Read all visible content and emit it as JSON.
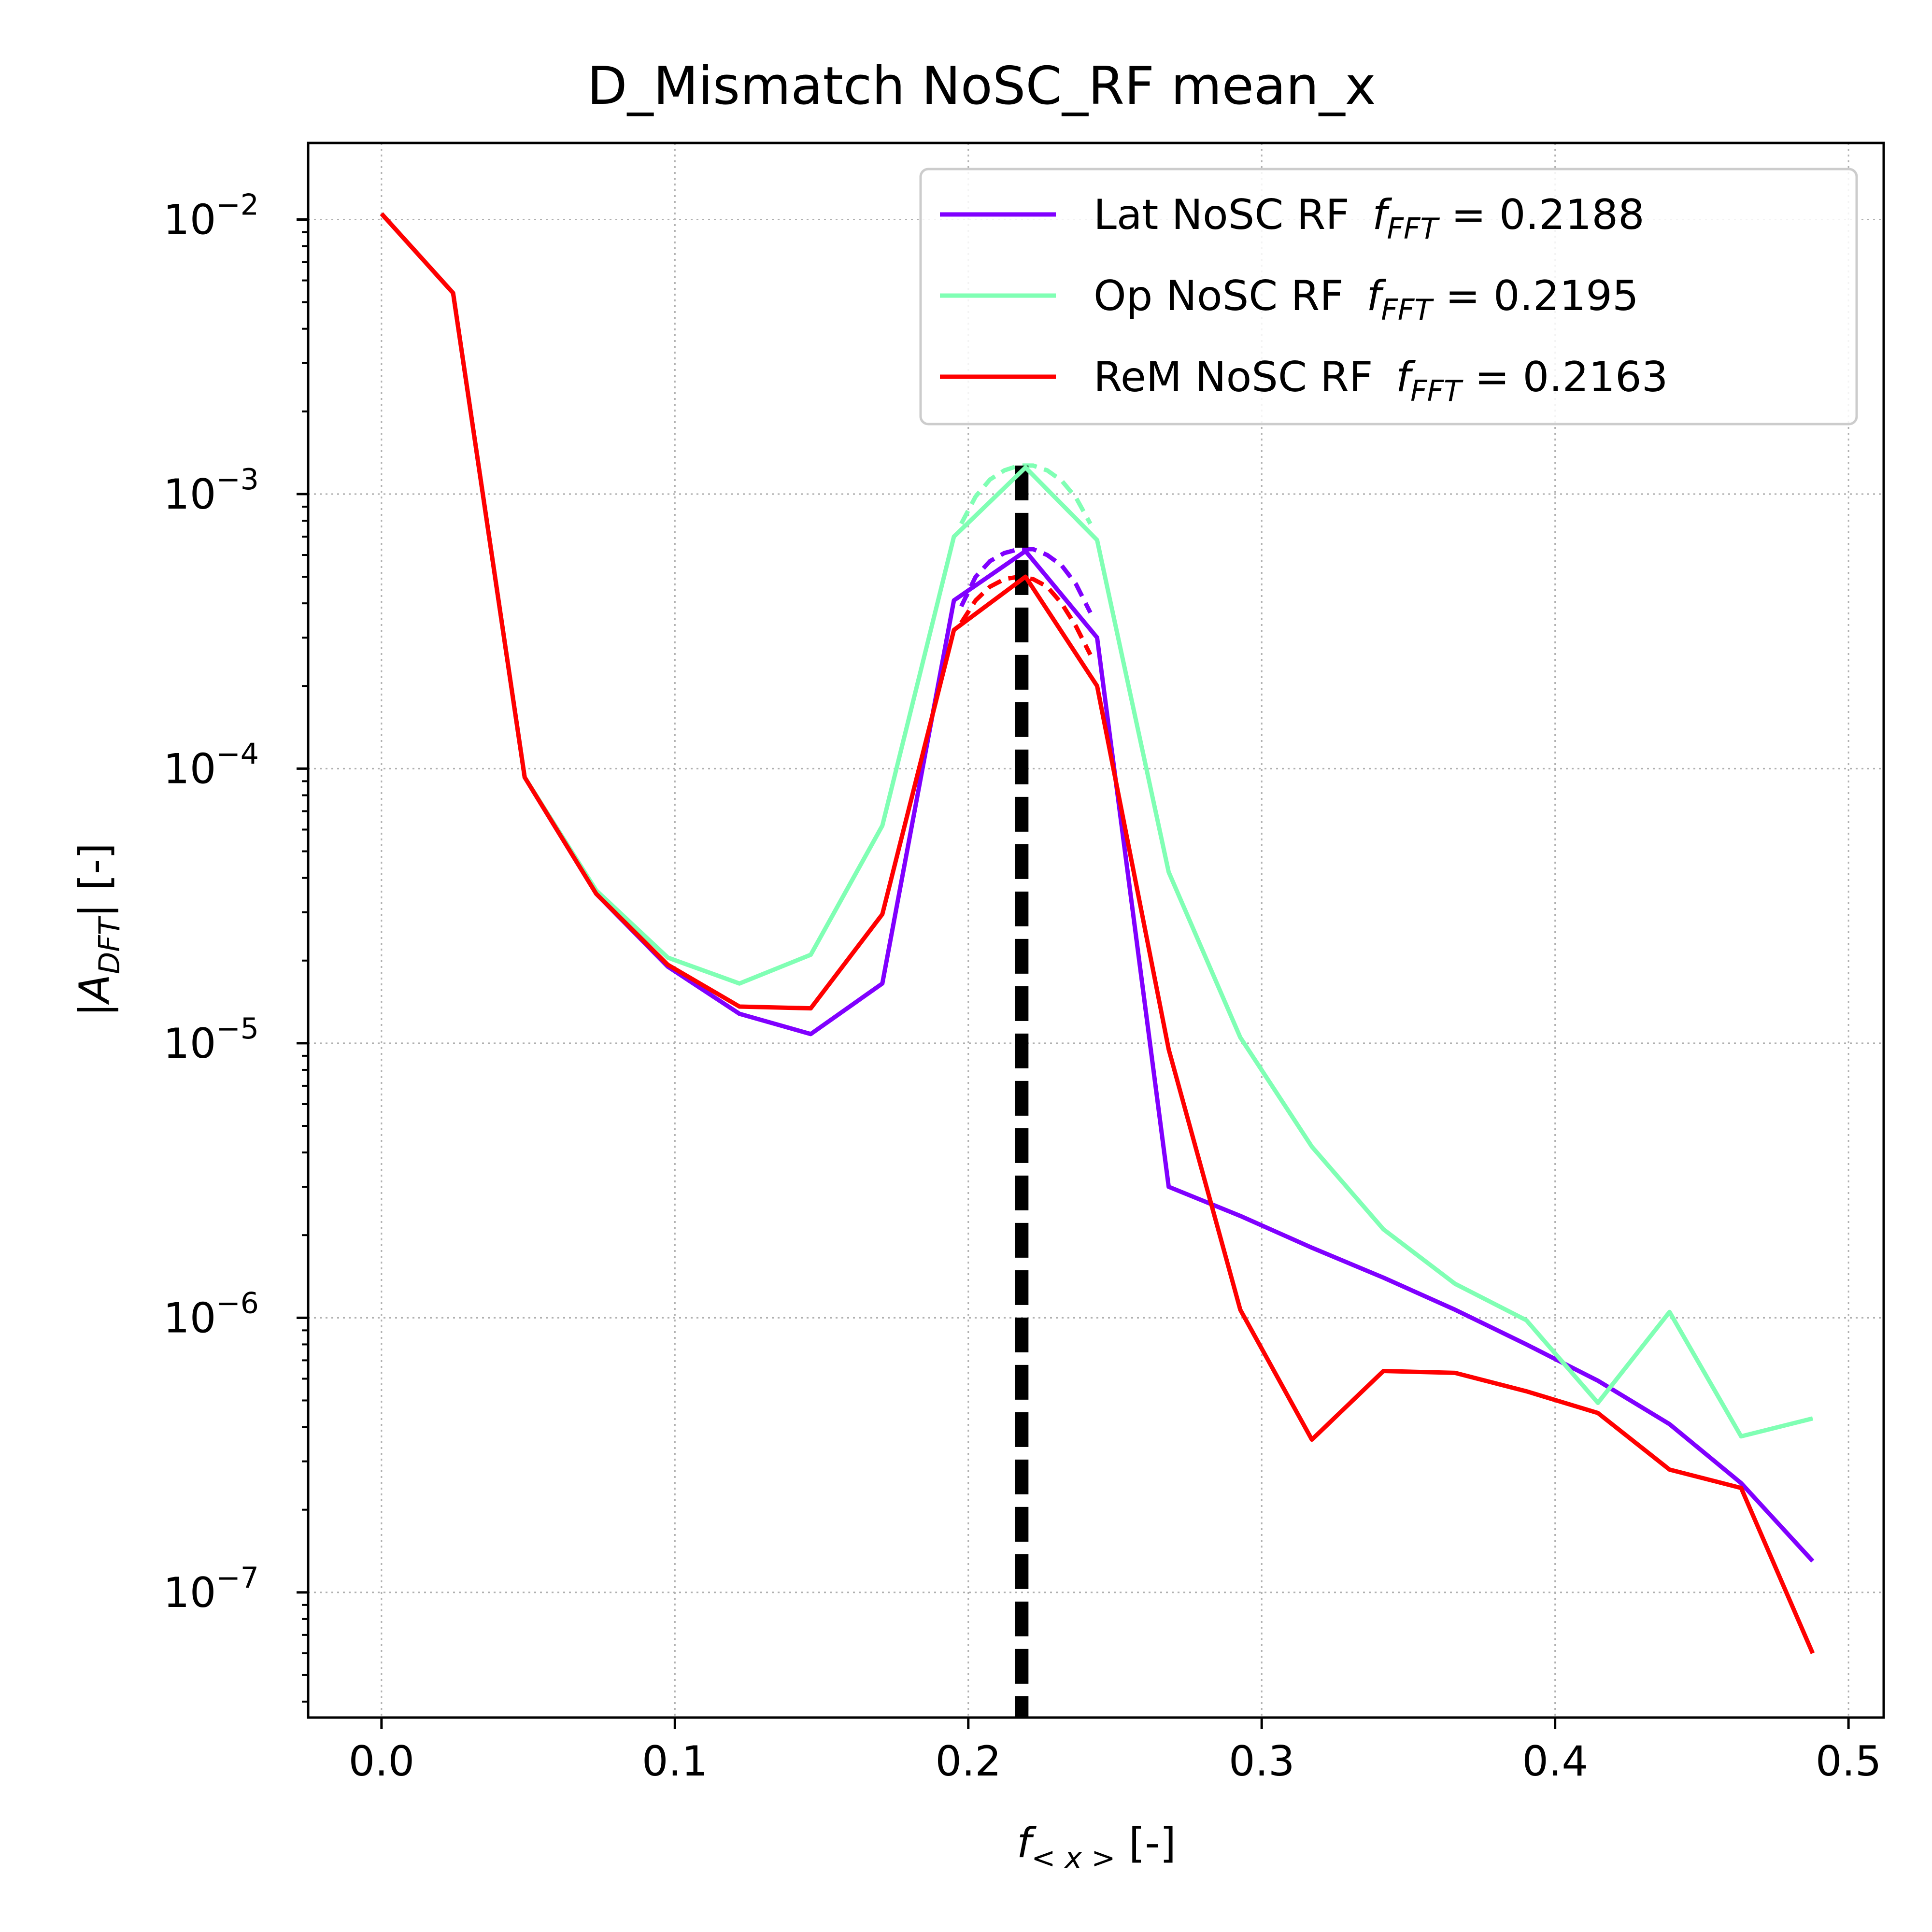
{
  "chart_data": {
    "type": "line",
    "title": "D_Mismatch NoSC_RF mean_x",
    "xlabel": "f_<x> [-]",
    "ylabel": "|A_DFT| [-]",
    "xlim": [
      -0.025,
      0.512
    ],
    "ylim": [
      3.5e-08,
      0.019
    ],
    "yscale": "log",
    "grid": true,
    "legend_position": "top-right",
    "x_ticks": [
      {
        "value": 0.0,
        "label": "0.0"
      },
      {
        "value": 0.1,
        "label": "0.1"
      },
      {
        "value": 0.2,
        "label": "0.2"
      },
      {
        "value": 0.3,
        "label": "0.3"
      },
      {
        "value": 0.4,
        "label": "0.4"
      },
      {
        "value": 0.5,
        "label": "0.5"
      }
    ],
    "y_ticks": [
      {
        "value": 1e-07,
        "mantissa": "10",
        "exponent": "−7"
      },
      {
        "value": 1e-06,
        "mantissa": "10",
        "exponent": "−6"
      },
      {
        "value": 1e-05,
        "mantissa": "10",
        "exponent": "−5"
      },
      {
        "value": 0.0001,
        "mantissa": "10",
        "exponent": "−4"
      },
      {
        "value": 0.001,
        "mantissa": "10",
        "exponent": "−3"
      },
      {
        "value": 0.01,
        "mantissa": "10",
        "exponent": "−2"
      }
    ],
    "x": [
      0.0,
      0.0244,
      0.0488,
      0.0732,
      0.0976,
      0.122,
      0.1463,
      0.1707,
      0.1951,
      0.2195,
      0.2439,
      0.2683,
      0.2927,
      0.3171,
      0.3415,
      0.3659,
      0.3902,
      0.4146,
      0.439,
      0.4634,
      0.4878
    ],
    "series": [
      {
        "name": "Lat NoSC RF",
        "legend_label": "Lat NoSC RF f_FFT =  0.2188",
        "f_fft": "0.2188",
        "color": "#8000ff",
        "values": [
          0.0105,
          0.0054,
          9.3e-05,
          3.5e-05,
          1.9e-05,
          1.28e-05,
          1.08e-05,
          1.65e-05,
          0.00041,
          0.00062,
          0.0003,
          3e-06,
          2.35e-06,
          1.8e-06,
          1.4e-06,
          1.07e-06,
          8e-07,
          5.9e-07,
          4.1e-07,
          2.5e-07,
          1.3e-07
        ]
      },
      {
        "name": "Op NoSC RF",
        "legend_label": "Op NoSC RF f_FFT =  0.2195",
        "f_fft": "0.2195",
        "color": "#80ffb4",
        "values": [
          0.0105,
          0.0054,
          9.3e-05,
          3.6e-05,
          2.05e-05,
          1.65e-05,
          2.1e-05,
          6.2e-05,
          0.0007,
          0.00125,
          0.00068,
          4.2e-05,
          1.05e-05,
          4.2e-06,
          2.1e-06,
          1.33e-06,
          9.8e-07,
          4.9e-07,
          1.05e-06,
          3.7e-07,
          4.3e-07
        ]
      },
      {
        "name": "ReM NoSC RF",
        "legend_label": "ReM NoSC RF f_FFT =  0.2163",
        "f_fft": "0.2163",
        "color": "#ff0000",
        "values": [
          0.0105,
          0.0054,
          9.3e-05,
          3.5e-05,
          1.93e-05,
          1.36e-05,
          1.34e-05,
          2.95e-05,
          0.00032,
          0.0005,
          0.0002,
          9.5e-06,
          1.07e-06,
          3.6e-07,
          6.4e-07,
          6.3e-07,
          5.4e-07,
          4.5e-07,
          2.8e-07,
          2.4e-07,
          6e-08
        ]
      }
    ],
    "fit_curves": [
      {
        "series": "Lat NoSC RF",
        "color": "#8000ff",
        "x": [
          0.1976,
          0.2025,
          0.2074,
          0.2123,
          0.2172,
          0.2221,
          0.2269,
          0.2318,
          0.2367,
          0.2416
        ],
        "values": [
          0.00039,
          0.0005,
          0.00057,
          0.00061,
          0.00063,
          0.00063,
          0.0006,
          0.00055,
          0.00047,
          0.00037
        ]
      },
      {
        "series": "Op NoSC RF",
        "color": "#80ffb4",
        "x": [
          0.1976,
          0.2025,
          0.2074,
          0.2123,
          0.2172,
          0.2221,
          0.2269,
          0.2318,
          0.2367,
          0.2416
        ],
        "values": [
          0.00078,
          0.00098,
          0.00113,
          0.00122,
          0.00127,
          0.00127,
          0.00122,
          0.00112,
          0.00097,
          0.00078
        ]
      },
      {
        "series": "ReM NoSC RF",
        "color": "#ff0000",
        "x": [
          0.1976,
          0.2025,
          0.2074,
          0.2123,
          0.2172,
          0.2221,
          0.2269,
          0.2318,
          0.2367,
          0.2416
        ],
        "values": [
          0.00034,
          0.00041,
          0.00046,
          0.00049,
          0.0005,
          0.00049,
          0.00046,
          0.0004,
          0.00033,
          0.00026
        ]
      }
    ],
    "reference_line": {
      "x": 0.2182,
      "style": "dashed",
      "color": "#000000"
    }
  }
}
